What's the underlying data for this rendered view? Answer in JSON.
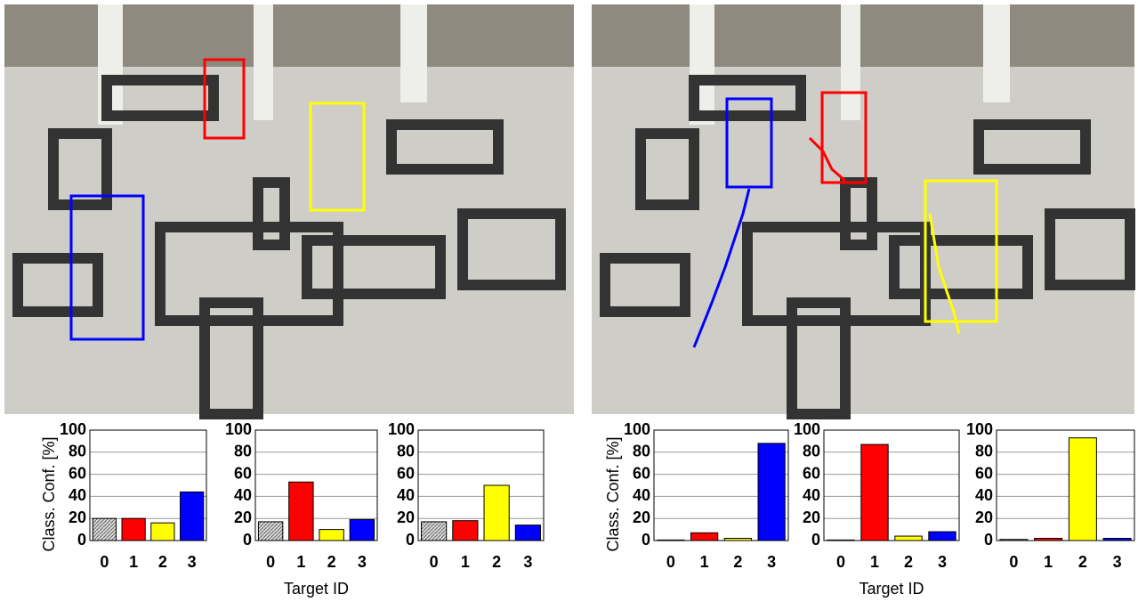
{
  "chart_data": [
    {
      "type": "bar",
      "ylabel": "Class. Conf. [%]",
      "categories": [
        "0",
        "1",
        "2",
        "3"
      ],
      "values": [
        20,
        20,
        16,
        44
      ],
      "colors": [
        "#c8c8c8",
        "#ff0000",
        "#ffff00",
        "#0000ff"
      ],
      "ylim": [
        0,
        100
      ],
      "yticks": [
        0,
        20,
        40,
        60,
        80,
        100
      ],
      "grid": true
    },
    {
      "type": "bar",
      "xlabel": "Target ID",
      "categories": [
        "0",
        "1",
        "2",
        "3"
      ],
      "values": [
        17,
        53,
        10,
        19
      ],
      "colors": [
        "#c8c8c8",
        "#ff0000",
        "#ffff00",
        "#0000ff"
      ],
      "ylim": [
        0,
        100
      ],
      "yticks": [
        0,
        20,
        40,
        60,
        80,
        100
      ],
      "grid": true
    },
    {
      "type": "bar",
      "categories": [
        "0",
        "1",
        "2",
        "3"
      ],
      "values": [
        17,
        18,
        50,
        14
      ],
      "colors": [
        "#c8c8c8",
        "#ff0000",
        "#ffff00",
        "#0000ff"
      ],
      "ylim": [
        0,
        100
      ],
      "yticks": [
        0,
        20,
        40,
        60,
        80,
        100
      ],
      "grid": true
    },
    {
      "type": "bar",
      "ylabel": "Class. Conf. [%]",
      "categories": [
        "0",
        "1",
        "2",
        "3"
      ],
      "values": [
        0.5,
        7,
        2,
        88
      ],
      "colors": [
        "#c8c8c8",
        "#ff0000",
        "#ffff00",
        "#0000ff"
      ],
      "ylim": [
        0,
        100
      ],
      "yticks": [
        0,
        20,
        40,
        60,
        80,
        100
      ],
      "grid": true
    },
    {
      "type": "bar",
      "xlabel": "Target ID",
      "categories": [
        "0",
        "1",
        "2",
        "3"
      ],
      "values": [
        0.5,
        87,
        4,
        8
      ],
      "colors": [
        "#c8c8c8",
        "#ff0000",
        "#ffff00",
        "#0000ff"
      ],
      "ylim": [
        0,
        100
      ],
      "yticks": [
        0,
        20,
        40,
        60,
        80,
        100
      ],
      "grid": true
    },
    {
      "type": "bar",
      "categories": [
        "0",
        "1",
        "2",
        "3"
      ],
      "values": [
        1,
        2,
        93,
        2
      ],
      "colors": [
        "#c8c8c8",
        "#ff0000",
        "#ffff00",
        "#0000ff"
      ],
      "ylim": [
        0,
        100
      ],
      "yticks": [
        0,
        20,
        40,
        60,
        80,
        100
      ],
      "grid": true
    }
  ]
}
